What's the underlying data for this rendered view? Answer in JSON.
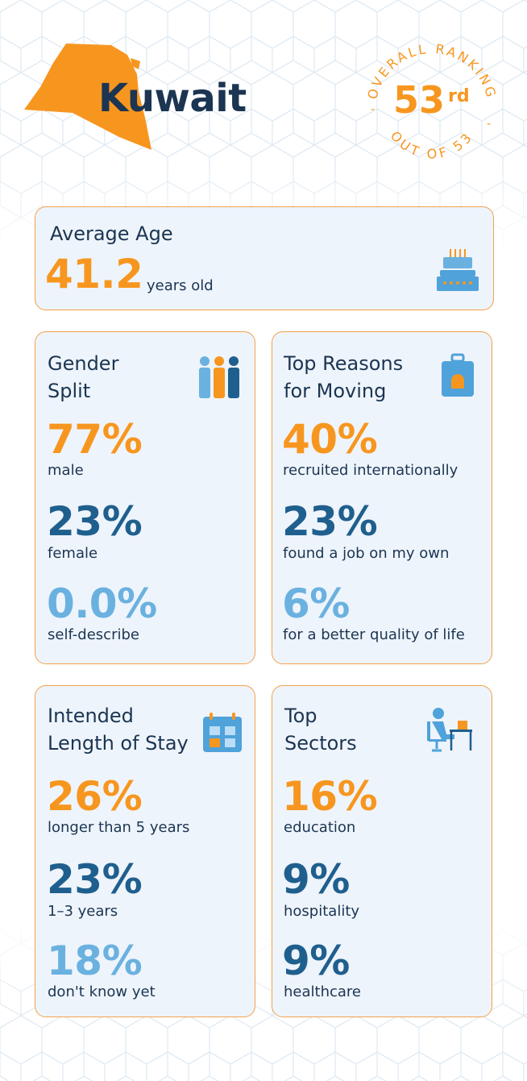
{
  "header": {
    "country": "Kuwait",
    "ranking_top": "OVERALL RANKING",
    "ranking_value": "53",
    "ranking_suffix": "rd",
    "ranking_bottom": "OUT OF 53",
    "ranking_dash": "-"
  },
  "average_age": {
    "title": "Average Age",
    "value": "41.2",
    "unit": "years old",
    "icon": "birthday-cake-icon"
  },
  "gender": {
    "title_line1": "Gender",
    "title_line2": "Split",
    "icon": "people-icon",
    "stats": [
      {
        "value": "77%",
        "label": "male"
      },
      {
        "value": "23%",
        "label": "female"
      },
      {
        "value": "0.0%",
        "label": "self-describe"
      }
    ]
  },
  "reasons": {
    "title_line1": "Top Reasons",
    "title_line2": "for Moving",
    "icon": "suitcase-icon",
    "stats": [
      {
        "value": "40%",
        "label": "recruited internationally"
      },
      {
        "value": "23%",
        "label": "found a job on my own"
      },
      {
        "value": "6%",
        "label": "for a better quality of life"
      }
    ]
  },
  "stay": {
    "title_line1": "Intended",
    "title_line2": "Length of Stay",
    "icon": "calendar-icon",
    "stats": [
      {
        "value": "26%",
        "label": "longer than 5 years"
      },
      {
        "value": "23%",
        "label": "1–3 years"
      },
      {
        "value": "18%",
        "label": "don't know yet"
      }
    ]
  },
  "sectors": {
    "title_line1": "Top",
    "title_line2": "Sectors",
    "icon": "person-at-desk-icon",
    "stats": [
      {
        "value": "16%",
        "label": "education"
      },
      {
        "value": "9%",
        "label": "hospitality"
      },
      {
        "value": "9%",
        "label": "healthcare"
      }
    ]
  },
  "colors": {
    "accent_orange": "#f7961f",
    "dark_blue": "#1f5f8e",
    "light_blue": "#6ab1e0",
    "navy_text": "#1b3552",
    "card_bg": "#eef4fb",
    "card_border": "#f2a24a"
  }
}
